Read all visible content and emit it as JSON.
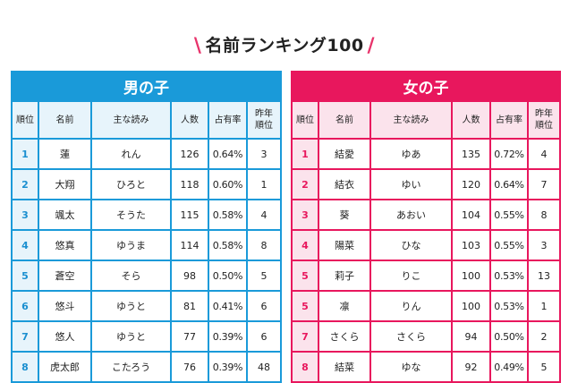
{
  "title": {
    "text": "名前ランキング100",
    "slash_left": "\\",
    "slash_right": "/",
    "accent_color": "#e8336b"
  },
  "columns": [
    "順位",
    "名前",
    "主な読み",
    "人数",
    "占有率",
    "昨年順位"
  ],
  "column_labels": {
    "rank": "順位",
    "name": "名前",
    "reading": "主な読み",
    "count": "人数",
    "share": "占有率",
    "prev_rank_line1": "昨年",
    "prev_rank_line2": "順位"
  },
  "boys": {
    "heading": "男の子",
    "color": "#1a9ad9",
    "rows": [
      {
        "rank": "1",
        "name": "蓮",
        "reading": "れん",
        "count": "126",
        "share": "0.64%",
        "prev": "3"
      },
      {
        "rank": "2",
        "name": "大翔",
        "reading": "ひろと",
        "count": "118",
        "share": "0.60%",
        "prev": "1"
      },
      {
        "rank": "3",
        "name": "颯太",
        "reading": "そうた",
        "count": "115",
        "share": "0.58%",
        "prev": "4"
      },
      {
        "rank": "4",
        "name": "悠真",
        "reading": "ゆうま",
        "count": "114",
        "share": "0.58%",
        "prev": "8"
      },
      {
        "rank": "5",
        "name": "蒼空",
        "reading": "そら",
        "count": "98",
        "share": "0.50%",
        "prev": "5"
      },
      {
        "rank": "6",
        "name": "悠斗",
        "reading": "ゆうと",
        "count": "81",
        "share": "0.41%",
        "prev": "6"
      },
      {
        "rank": "7",
        "name": "悠人",
        "reading": "ゆうと",
        "count": "77",
        "share": "0.39%",
        "prev": "6"
      },
      {
        "rank": "8",
        "name": "虎太郎",
        "reading": "こたろう",
        "count": "76",
        "share": "0.39%",
        "prev": "48"
      }
    ]
  },
  "girls": {
    "heading": "女の子",
    "color": "#e8175d",
    "rows": [
      {
        "rank": "1",
        "name": "結愛",
        "reading": "ゆあ",
        "count": "135",
        "share": "0.72%",
        "prev": "4"
      },
      {
        "rank": "2",
        "name": "結衣",
        "reading": "ゆい",
        "count": "120",
        "share": "0.64%",
        "prev": "7"
      },
      {
        "rank": "3",
        "name": "葵",
        "reading": "あおい",
        "count": "104",
        "share": "0.55%",
        "prev": "8"
      },
      {
        "rank": "4",
        "name": "陽菜",
        "reading": "ひな",
        "count": "103",
        "share": "0.55%",
        "prev": "3"
      },
      {
        "rank": "5",
        "name": "莉子",
        "reading": "りこ",
        "count": "100",
        "share": "0.53%",
        "prev": "13"
      },
      {
        "rank": "5",
        "name": "凛",
        "reading": "りん",
        "count": "100",
        "share": "0.53%",
        "prev": "1"
      },
      {
        "rank": "7",
        "name": "さくら",
        "reading": "さくら",
        "count": "94",
        "share": "0.50%",
        "prev": "2"
      },
      {
        "rank": "8",
        "name": "結菜",
        "reading": "ゆな",
        "count": "92",
        "share": "0.49%",
        "prev": "5"
      }
    ]
  }
}
